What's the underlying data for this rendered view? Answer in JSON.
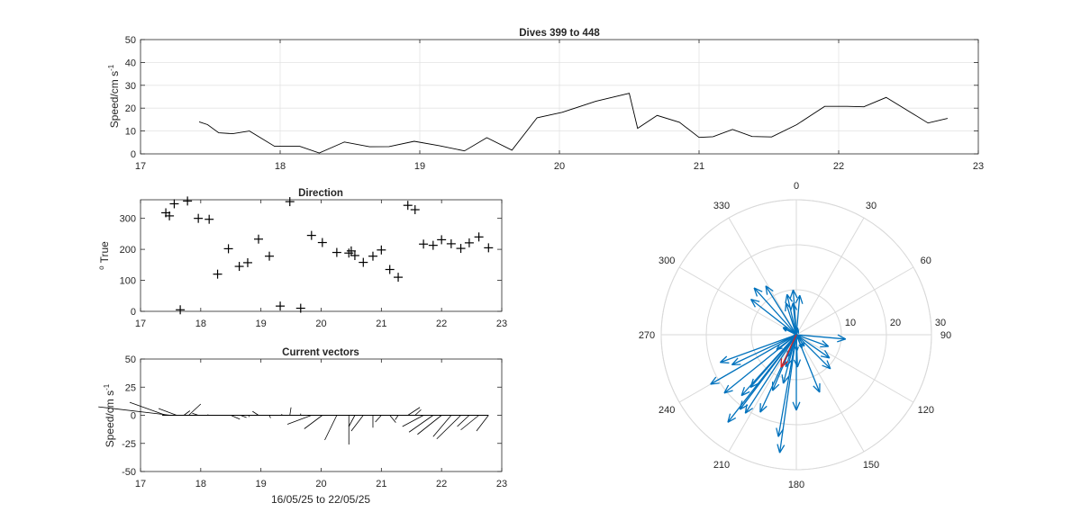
{
  "chart_data": [
    {
      "type": "line",
      "title": "Dives 399 to 448",
      "xlabel": "",
      "ylabel": "Speed/cm s",
      "ylabel_sup": "-1",
      "xlim": [
        17,
        23
      ],
      "ylim": [
        0,
        50
      ],
      "xticks": [
        17,
        18,
        19,
        20,
        21,
        22,
        23
      ],
      "yticks": [
        0,
        10,
        20,
        30,
        40,
        50
      ],
      "grid": true,
      "series": [
        {
          "x": [
            17.42,
            17.48,
            17.56,
            17.66,
            17.78,
            17.96,
            18.14,
            18.28,
            18.46,
            18.64,
            18.78,
            18.96,
            19.14,
            19.32,
            19.48,
            19.66,
            19.84,
            20.02,
            20.26,
            20.5,
            20.56,
            20.7,
            20.86,
            21.0,
            21.1,
            21.24,
            21.38,
            21.52,
            21.7,
            21.9,
            22.06,
            22.18,
            22.34,
            22.64,
            22.78
          ],
          "y": [
            14,
            12.8,
            9.2,
            8.8,
            10,
            3.3,
            3.3,
            0.4,
            5.2,
            3.1,
            3.2,
            5.5,
            3.6,
            1.3,
            7.1,
            1.6,
            15.8,
            18.2,
            23,
            26.5,
            11.2,
            16.8,
            13.8,
            7.2,
            7.5,
            10.7,
            7.6,
            7.4,
            12.8,
            20.8,
            20.8,
            20.6,
            24.7,
            13.5,
            15.5
          ]
        }
      ]
    },
    {
      "type": "scatter",
      "title": "Direction",
      "xlabel": "",
      "ylabel": "True",
      "ylabel_pre": "o",
      "xlim": [
        17,
        23
      ],
      "ylim": [
        0,
        360
      ],
      "xticks": [
        17,
        18,
        19,
        20,
        21,
        22,
        23
      ],
      "yticks": [
        0,
        100,
        200,
        300
      ],
      "grid": false,
      "series": [
        {
          "x": [
            17.42,
            17.48,
            17.56,
            17.66,
            17.78,
            17.96,
            18.14,
            18.28,
            18.46,
            18.64,
            18.78,
            18.96,
            19.14,
            19.32,
            19.48,
            19.66,
            19.84,
            20.02,
            20.26,
            20.46,
            20.5,
            20.56,
            20.7,
            20.86,
            21.0,
            21.14,
            21.28,
            21.44,
            21.56,
            21.7,
            21.86,
            22.0,
            22.16,
            22.32,
            22.46,
            22.62,
            22.78
          ],
          "y": [
            318,
            308,
            347,
            5,
            356,
            300,
            297,
            120,
            202,
            145,
            157,
            233,
            178,
            17,
            354,
            10,
            245,
            222,
            190,
            188,
            195,
            180,
            158,
            178,
            198,
            135,
            110,
            342,
            328,
            217,
            213,
            231,
            218,
            203,
            221,
            240,
            205
          ]
        }
      ]
    },
    {
      "type": "quiver",
      "title": "Current vectors",
      "xlabel": "16/05/25 to 22/05/25",
      "ylabel": "Speed/cm s",
      "ylabel_sup": "-1",
      "xlim": [
        17,
        23
      ],
      "ylim": [
        -50,
        50
      ],
      "xticks": [
        17,
        18,
        19,
        20,
        21,
        22,
        23
      ],
      "yticks": [
        -50,
        -25,
        0,
        25,
        50
      ],
      "grid": false,
      "baseline": 0,
      "sticks": [
        {
          "x": 17.42,
          "u": -0.6,
          "v": 11.5
        },
        {
          "x": 17.5,
          "u": -1.2,
          "v": 7.5
        },
        {
          "x": 17.6,
          "u": -0.3,
          "v": 6.0
        },
        {
          "x": 17.72,
          "u": 0.1,
          "v": 4.0
        },
        {
          "x": 17.8,
          "u": 0.2,
          "v": 10.0
        },
        {
          "x": 17.96,
          "u": -0.1,
          "v": 1.8
        },
        {
          "x": 18.12,
          "u": 0.0,
          "v": 0.8
        },
        {
          "x": 18.5,
          "u": 0.15,
          "v": -3.5
        },
        {
          "x": 18.66,
          "u": 0.1,
          "v": -2.0
        },
        {
          "x": 18.8,
          "u": 0.0,
          "v": -1.5
        },
        {
          "x": 18.96,
          "u": -0.1,
          "v": 3.5
        },
        {
          "x": 19.14,
          "u": 0.02,
          "v": -2.5
        },
        {
          "x": 19.34,
          "u": 0.01,
          "v": 1.0
        },
        {
          "x": 19.48,
          "u": 0.02,
          "v": 7.0
        },
        {
          "x": 19.66,
          "u": 0.0,
          "v": 1.5
        },
        {
          "x": 19.84,
          "u": -0.4,
          "v": -8.0
        },
        {
          "x": 20.02,
          "u": -0.3,
          "v": -12.0
        },
        {
          "x": 20.26,
          "u": -0.2,
          "v": -22.0
        },
        {
          "x": 20.46,
          "u": 0.0,
          "v": -26.0
        },
        {
          "x": 20.56,
          "u": -0.1,
          "v": -10.0
        },
        {
          "x": 20.7,
          "u": -0.2,
          "v": -14.0
        },
        {
          "x": 20.86,
          "u": 0.0,
          "v": -11.0
        },
        {
          "x": 21.0,
          "u": -0.1,
          "v": -6.0
        },
        {
          "x": 21.14,
          "u": 0.1,
          "v": -6.5
        },
        {
          "x": 21.28,
          "u": -0.05,
          "v": -4.0
        },
        {
          "x": 21.44,
          "u": 0.2,
          "v": 7.0
        },
        {
          "x": 21.56,
          "u": 0.1,
          "v": 5.0
        },
        {
          "x": 21.7,
          "u": -0.35,
          "v": -10.0
        },
        {
          "x": 21.86,
          "u": -0.4,
          "v": -15.0
        },
        {
          "x": 22.0,
          "u": -0.4,
          "v": -17.0
        },
        {
          "x": 22.16,
          "u": -0.3,
          "v": -19.0
        },
        {
          "x": 22.32,
          "u": -0.4,
          "v": -21.0
        },
        {
          "x": 22.46,
          "u": -0.2,
          "v": -10.0
        },
        {
          "x": 22.62,
          "u": -0.3,
          "v": -13.0
        },
        {
          "x": 22.78,
          "u": -0.2,
          "v": -14.0
        }
      ]
    },
    {
      "type": "polar-compass",
      "title": "",
      "rlim": [
        0,
        30
      ],
      "rticks": [
        10,
        20,
        30
      ],
      "theta_ticks": [
        0,
        30,
        60,
        90,
        120,
        150,
        180,
        210,
        240,
        270,
        300,
        330
      ],
      "theta_direction": "clockwise",
      "theta_zero": "top",
      "colors": {
        "vectors": "#0072BD",
        "mean": "#D92120",
        "grid": "#d9d9d9"
      },
      "vectors": [
        {
          "dir": 318,
          "speed": 14
        },
        {
          "dir": 308,
          "speed": 12.8
        },
        {
          "dir": 347,
          "speed": 9.2
        },
        {
          "dir": 5,
          "speed": 8.8
        },
        {
          "dir": 356,
          "speed": 10
        },
        {
          "dir": 300,
          "speed": 3.3
        },
        {
          "dir": 297,
          "speed": 3.3
        },
        {
          "dir": 120,
          "speed": 0.4
        },
        {
          "dir": 202,
          "speed": 5.2
        },
        {
          "dir": 145,
          "speed": 3.1
        },
        {
          "dir": 157,
          "speed": 3.2
        },
        {
          "dir": 233,
          "speed": 5.5
        },
        {
          "dir": 178,
          "speed": 3.6
        },
        {
          "dir": 17,
          "speed": 1.3
        },
        {
          "dir": 354,
          "speed": 7.1
        },
        {
          "dir": 10,
          "speed": 1.6
        },
        {
          "dir": 245,
          "speed": 15.8
        },
        {
          "dir": 222,
          "speed": 18.2
        },
        {
          "dir": 190,
          "speed": 23
        },
        {
          "dir": 188,
          "speed": 26.5
        },
        {
          "dir": 195,
          "speed": 11.2
        },
        {
          "dir": 180,
          "speed": 16.8
        },
        {
          "dir": 158,
          "speed": 13.8
        },
        {
          "dir": 178,
          "speed": 7.2
        },
        {
          "dir": 198,
          "speed": 7.5
        },
        {
          "dir": 135,
          "speed": 10.7
        },
        {
          "dir": 110,
          "speed": 7.6
        },
        {
          "dir": 342,
          "speed": 7.4
        },
        {
          "dir": 328,
          "speed": 12.8
        },
        {
          "dir": 217,
          "speed": 20.8
        },
        {
          "dir": 213,
          "speed": 20.8
        },
        {
          "dir": 231,
          "speed": 20.6
        },
        {
          "dir": 218,
          "speed": 24.7
        },
        {
          "dir": 203,
          "speed": 13.5
        },
        {
          "dir": 221,
          "speed": 15.5
        },
        {
          "dir": 240,
          "speed": 22
        },
        {
          "dir": 205,
          "speed": 19
        },
        {
          "dir": 250,
          "speed": 18
        },
        {
          "dir": 95,
          "speed": 11
        },
        {
          "dir": 125,
          "speed": 9
        }
      ],
      "mean_vector": {
        "dir": 205,
        "speed": 8
      }
    }
  ]
}
